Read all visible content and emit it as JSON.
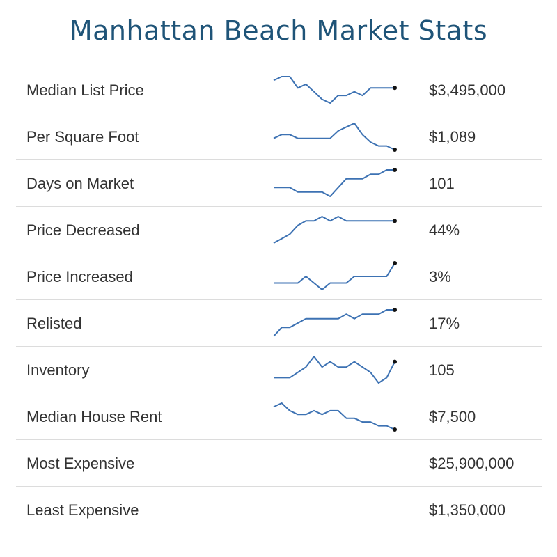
{
  "title": "Manhattan Beach Market Stats",
  "colors": {
    "title": "#1f5478",
    "line": "#3d72b3",
    "endpoint": "#111111",
    "text": "#333333",
    "divider": "#dcdcdc"
  },
  "chart_data": {
    "type": "table",
    "rows": [
      {
        "label": "Median List Price",
        "value": "$3,495,000",
        "series": [
          5,
          6,
          6,
          3,
          4,
          2,
          0,
          -1,
          1,
          1,
          2,
          1,
          3,
          3,
          3,
          3
        ]
      },
      {
        "label": "Per Square Foot",
        "value": "$1,089",
        "series": [
          2,
          3,
          3,
          2,
          2,
          2,
          2,
          2,
          4,
          5,
          6,
          3,
          1,
          0,
          0,
          -1
        ]
      },
      {
        "label": "Days on Market",
        "value": "101",
        "series": [
          2,
          2,
          2,
          1,
          1,
          1,
          1,
          0,
          2,
          4,
          4,
          4,
          5,
          5,
          6,
          6
        ]
      },
      {
        "label": "Price Decreased",
        "value": "44%",
        "series": [
          0,
          1,
          2,
          4,
          5,
          5,
          6,
          5,
          6,
          5,
          5,
          5,
          5,
          5,
          5,
          5
        ]
      },
      {
        "label": "Price Increased",
        "value": "3%",
        "series": [
          2,
          2,
          2,
          2,
          3,
          2,
          1,
          2,
          2,
          2,
          3,
          3,
          3,
          3,
          3,
          5
        ]
      },
      {
        "label": "Relisted",
        "value": "17%",
        "series": [
          0,
          2,
          2,
          3,
          4,
          4,
          4,
          4,
          4,
          5,
          4,
          5,
          5,
          5,
          6,
          6
        ]
      },
      {
        "label": "Inventory",
        "value": "105",
        "series": [
          1,
          1,
          1,
          2,
          3,
          5,
          3,
          4,
          3,
          3,
          4,
          3,
          2,
          0,
          1,
          4
        ]
      },
      {
        "label": "Median House Rent",
        "value": "$7,500",
        "series": [
          6,
          7,
          5,
          4,
          4,
          5,
          4,
          5,
          5,
          3,
          3,
          2,
          2,
          1,
          1,
          0
        ]
      },
      {
        "label": "Most Expensive",
        "value": "$25,900,000"
      },
      {
        "label": "Least Expensive",
        "value": "$1,350,000"
      }
    ]
  }
}
